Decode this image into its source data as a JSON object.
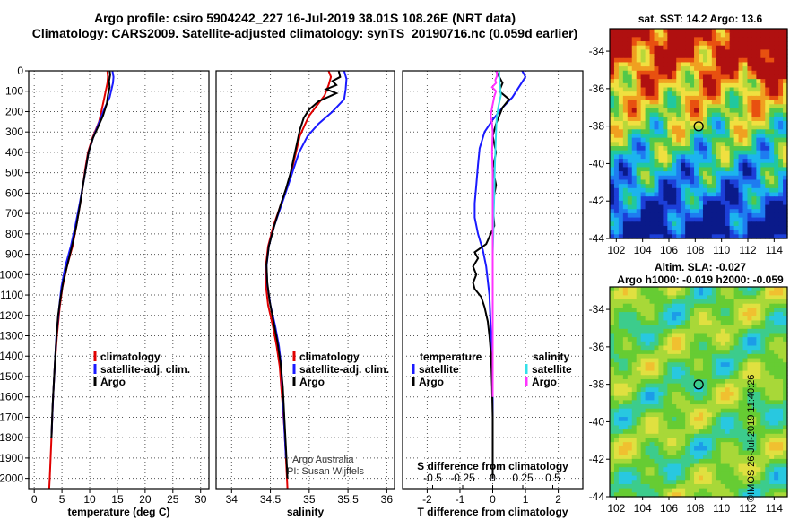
{
  "header": {
    "line1": "Argo profile: csiro 5904242_227 16-Jul-2019 38.01S 108.26E (NRT data)",
    "line2": "Climatology: CARS2009. Satellite-adjusted climatology: synTS_20190716.nc (0.059d earlier)"
  },
  "notes": {
    "institution": "Argo Australia",
    "pi": "PI: Susan Wijffels"
  },
  "maps": {
    "sst_title": "sat. SST: 14.2 Argo: 13.6",
    "sla_title1": "Altim. SLA: -0.027",
    "sla_title2": "Argo h1000: -0.019 h2000: -0.059",
    "credit": "©IMOS 26-Jul-2019 11:40:26"
  },
  "colors": {
    "climatology": "#e00000",
    "satellite": "#1a1aff",
    "argo": "#000000",
    "salinity_satellite": "#33e0e8",
    "salinity_argo": "#ff33ff"
  },
  "chart_data": [
    {
      "type": "line",
      "id": "temperature",
      "xlabel": "temperature (deg C)",
      "ylabel": "",
      "xlim": [
        -1,
        31.5
      ],
      "ylim": [
        2050,
        0
      ],
      "xticks": [
        0,
        5,
        10,
        15,
        20,
        25,
        30
      ],
      "yticks": [
        0,
        100,
        200,
        300,
        400,
        500,
        600,
        700,
        800,
        900,
        1000,
        1100,
        1200,
        1300,
        1400,
        1500,
        1600,
        1700,
        1800,
        1900,
        2000
      ],
      "grid": true,
      "legend": "lower-left",
      "series": [
        {
          "name": "climatology",
          "color": "#e00000",
          "points": [
            [
              13.2,
              0
            ],
            [
              13.3,
              30
            ],
            [
              13.2,
              60
            ],
            [
              12.5,
              150
            ],
            [
              11.7,
              250
            ],
            [
              10.5,
              330
            ],
            [
              9.7,
              400
            ],
            [
              9.2,
              480
            ],
            [
              8.8,
              560
            ],
            [
              8.3,
              650
            ],
            [
              7.6,
              760
            ],
            [
              6.9,
              860
            ],
            [
              5.9,
              960
            ],
            [
              5.1,
              1060
            ],
            [
              4.6,
              1160
            ],
            [
              4.1,
              1300
            ],
            [
              3.7,
              1450
            ],
            [
              3.4,
              1600
            ],
            [
              3.1,
              1800
            ],
            [
              2.8,
              2000
            ],
            [
              2.7,
              2050
            ]
          ]
        },
        {
          "name": "satellite-adj. clim.",
          "color": "#1a1aff",
          "points": [
            [
              14.1,
              0
            ],
            [
              14.3,
              30
            ],
            [
              14.2,
              60
            ],
            [
              13.6,
              130
            ],
            [
              12.6,
              190
            ],
            [
              11.6,
              260
            ],
            [
              10.6,
              330
            ],
            [
              9.8,
              400
            ],
            [
              9.3,
              480
            ],
            [
              8.8,
              560
            ],
            [
              8.2,
              650
            ],
            [
              7.4,
              760
            ],
            [
              6.6,
              860
            ],
            [
              5.6,
              960
            ],
            [
              4.9,
              1060
            ],
            [
              4.5,
              1160
            ],
            [
              4.0,
              1300
            ],
            [
              3.7,
              1450
            ],
            [
              3.4,
              1600
            ],
            [
              3.1,
              1800
            ]
          ]
        },
        {
          "name": "Argo",
          "color": "#000000",
          "points": [
            [
              13.6,
              0
            ],
            [
              13.7,
              20
            ],
            [
              13.5,
              50
            ],
            [
              13.6,
              80
            ],
            [
              13.3,
              120
            ],
            [
              13.1,
              160
            ],
            [
              12.4,
              220
            ],
            [
              11.6,
              270
            ],
            [
              10.6,
              330
            ],
            [
              9.8,
              400
            ],
            [
              9.3,
              480
            ],
            [
              8.8,
              560
            ],
            [
              8.3,
              650
            ],
            [
              7.6,
              760
            ],
            [
              6.8,
              860
            ],
            [
              5.9,
              960
            ],
            [
              5.2,
              1040
            ],
            [
              4.7,
              1120
            ],
            [
              4.3,
              1200
            ],
            [
              3.9,
              1350
            ],
            [
              3.6,
              1500
            ],
            [
              3.3,
              1650
            ],
            [
              3.1,
              1800
            ]
          ]
        }
      ]
    },
    {
      "type": "line",
      "id": "salinity",
      "xlabel": "salinity",
      "ylabel": "",
      "xlim": [
        33.8,
        36.1
      ],
      "ylim": [
        2050,
        0
      ],
      "xticks": [
        34,
        34.5,
        35,
        35.5,
        36
      ],
      "xticklabels": [
        "34",
        "34.5",
        "35",
        "35.5",
        "36"
      ],
      "grid": true,
      "legend": "lower-left",
      "series": [
        {
          "name": "climatology",
          "color": "#e00000",
          "points": [
            [
              35.25,
              0
            ],
            [
              35.28,
              30
            ],
            [
              35.25,
              70
            ],
            [
              35.2,
              120
            ],
            [
              35.1,
              170
            ],
            [
              35.0,
              220
            ],
            [
              34.95,
              260
            ],
            [
              34.88,
              320
            ],
            [
              34.83,
              400
            ],
            [
              34.78,
              480
            ],
            [
              34.72,
              560
            ],
            [
              34.64,
              650
            ],
            [
              34.54,
              760
            ],
            [
              34.47,
              860
            ],
            [
              34.44,
              960
            ],
            [
              34.44,
              1050
            ],
            [
              34.47,
              1150
            ],
            [
              34.53,
              1250
            ],
            [
              34.58,
              1350
            ],
            [
              34.62,
              1450
            ],
            [
              34.65,
              1600
            ],
            [
              34.68,
              1750
            ],
            [
              34.7,
              1900
            ],
            [
              34.72,
              2050
            ]
          ]
        },
        {
          "name": "satellite-adj. clim.",
          "color": "#1a1aff",
          "points": [
            [
              35.45,
              0
            ],
            [
              35.48,
              40
            ],
            [
              35.47,
              90
            ],
            [
              35.45,
              140
            ],
            [
              35.3,
              200
            ],
            [
              35.12,
              260
            ],
            [
              34.98,
              320
            ],
            [
              34.87,
              400
            ],
            [
              34.8,
              480
            ],
            [
              34.73,
              560
            ],
            [
              34.65,
              650
            ],
            [
              34.55,
              760
            ],
            [
              34.48,
              860
            ],
            [
              34.45,
              960
            ],
            [
              34.46,
              1050
            ],
            [
              34.5,
              1150
            ],
            [
              34.56,
              1250
            ],
            [
              34.61,
              1350
            ],
            [
              34.64,
              1450
            ],
            [
              34.66,
              1600
            ],
            [
              34.68,
              1750
            ],
            [
              34.7,
              1900
            ]
          ]
        },
        {
          "name": "Argo",
          "color": "#000000",
          "points": [
            [
              35.38,
              0
            ],
            [
              35.4,
              30
            ],
            [
              35.3,
              50
            ],
            [
              35.35,
              70
            ],
            [
              35.22,
              90
            ],
            [
              35.35,
              110
            ],
            [
              35.12,
              150
            ],
            [
              35.0,
              190
            ],
            [
              34.93,
              230
            ],
            [
              34.88,
              290
            ],
            [
              34.84,
              360
            ],
            [
              34.8,
              430
            ],
            [
              34.76,
              500
            ],
            [
              34.7,
              580
            ],
            [
              34.63,
              660
            ],
            [
              34.55,
              760
            ],
            [
              34.48,
              860
            ],
            [
              34.45,
              950
            ],
            [
              34.46,
              1040
            ],
            [
              34.49,
              1130
            ],
            [
              34.54,
              1230
            ],
            [
              34.59,
              1330
            ],
            [
              34.63,
              1430
            ],
            [
              34.66,
              1550
            ],
            [
              34.68,
              1700
            ],
            [
              34.7,
              1850
            ],
            [
              34.72,
              2000
            ]
          ]
        }
      ]
    },
    {
      "type": "line",
      "id": "difference",
      "xlabel": "T difference from climatology",
      "xlabel2": "S difference from climatology",
      "xlim": [
        -2.75,
        2.75
      ],
      "ylim": [
        2050,
        0
      ],
      "xticks": [
        -2,
        -1,
        0,
        1,
        2
      ],
      "x2ticks": [
        -0.5,
        -0.25,
        0,
        0.25,
        0.5
      ],
      "x2ticklabels": [
        "-0.5",
        "-0.25",
        "0",
        "0.25",
        "0.5"
      ],
      "grid": true,
      "legend": "lower-left",
      "legend_headers": {
        "temperature": "temperature",
        "salinity": "salinity"
      },
      "series": [
        {
          "name": "satellite",
          "group": "temperature",
          "color": "#1a1aff",
          "points": [
            [
              0.9,
              0
            ],
            [
              1.0,
              30
            ],
            [
              0.8,
              80
            ],
            [
              0.6,
              130
            ],
            [
              0.3,
              180
            ],
            [
              0.0,
              240
            ],
            [
              -0.25,
              300
            ],
            [
              -0.4,
              380
            ],
            [
              -0.45,
              460
            ],
            [
              -0.5,
              560
            ],
            [
              -0.55,
              650
            ],
            [
              -0.55,
              720
            ],
            [
              -0.45,
              800
            ],
            [
              -0.3,
              880
            ],
            [
              -0.2,
              960
            ],
            [
              -0.1,
              1100
            ],
            [
              -0.05,
              1300
            ],
            [
              0.0,
              1500
            ],
            [
              0.0,
              1700
            ],
            [
              0.0,
              1900
            ],
            [
              0.0,
              2000
            ]
          ]
        },
        {
          "name": "Argo",
          "group": "temperature",
          "color": "#000000",
          "points": [
            [
              0.1,
              0
            ],
            [
              0.2,
              30
            ],
            [
              0.3,
              60
            ],
            [
              0.2,
              100
            ],
            [
              0.5,
              140
            ],
            [
              0.3,
              180
            ],
            [
              0.2,
              220
            ],
            [
              0.1,
              260
            ],
            [
              0.0,
              320
            ],
            [
              0.1,
              400
            ],
            [
              0.0,
              480
            ],
            [
              0.1,
              560
            ],
            [
              0.0,
              650
            ],
            [
              0.05,
              760
            ],
            [
              -0.2,
              850
            ],
            [
              -0.55,
              890
            ],
            [
              -0.45,
              920
            ],
            [
              -0.6,
              960
            ],
            [
              -0.5,
              1000
            ],
            [
              -0.6,
              1040
            ],
            [
              -0.55,
              1070
            ],
            [
              -0.35,
              1110
            ],
            [
              -0.25,
              1160
            ],
            [
              -0.15,
              1230
            ],
            [
              -0.1,
              1300
            ],
            [
              -0.05,
              1400
            ],
            [
              -0.02,
              1550
            ],
            [
              0.0,
              1700
            ],
            [
              0.0,
              1850
            ],
            [
              0.0,
              2000
            ]
          ]
        },
        {
          "name": "satellite",
          "group": "salinity",
          "color": "#33e0e8",
          "points": [
            [
              0.2,
              0
            ],
            [
              0.2,
              30
            ],
            [
              0.22,
              70
            ],
            [
              0.25,
              120
            ],
            [
              0.18,
              170
            ],
            [
              0.12,
              230
            ],
            [
              0.1,
              300
            ],
            [
              0.08,
              400
            ],
            [
              0.06,
              500
            ],
            [
              0.05,
              600
            ],
            [
              0.03,
              700
            ],
            [
              0.02,
              800
            ],
            [
              0.0,
              900
            ],
            [
              0.0,
              1100
            ],
            [
              0.0,
              1300
            ],
            [
              0.0,
              1500
            ]
          ]
        },
        {
          "name": "Argo",
          "group": "salinity",
          "color": "#ff33ff",
          "points": [
            [
              0.12,
              0
            ],
            [
              0.13,
              25
            ],
            [
              0.08,
              45
            ],
            [
              0.1,
              60
            ],
            [
              -0.02,
              80
            ],
            [
              0.1,
              100
            ],
            [
              0.05,
              125
            ],
            [
              0.02,
              150
            ],
            [
              -0.02,
              180
            ],
            [
              -0.06,
              220
            ],
            [
              -0.02,
              260
            ],
            [
              0.0,
              300
            ],
            [
              -0.02,
              400
            ],
            [
              0.0,
              500
            ],
            [
              0.0,
              600
            ],
            [
              0.0,
              700
            ],
            [
              0.0,
              800
            ],
            [
              0.0,
              1000
            ],
            [
              0.0,
              1200
            ],
            [
              0.0,
              1400
            ],
            [
              0.0,
              1600
            ]
          ]
        }
      ]
    }
  ],
  "map_axes": {
    "lon_ticks": [
      102,
      104,
      106,
      108,
      110,
      112,
      114
    ],
    "sst_lat_ticks": [
      -34,
      -36,
      -38,
      -40,
      -42,
      -44
    ],
    "sla_lat_ticks": [
      -34,
      -36,
      -38,
      -40,
      -42,
      -44
    ],
    "profile_position": [
      108.26,
      -38.01
    ]
  }
}
